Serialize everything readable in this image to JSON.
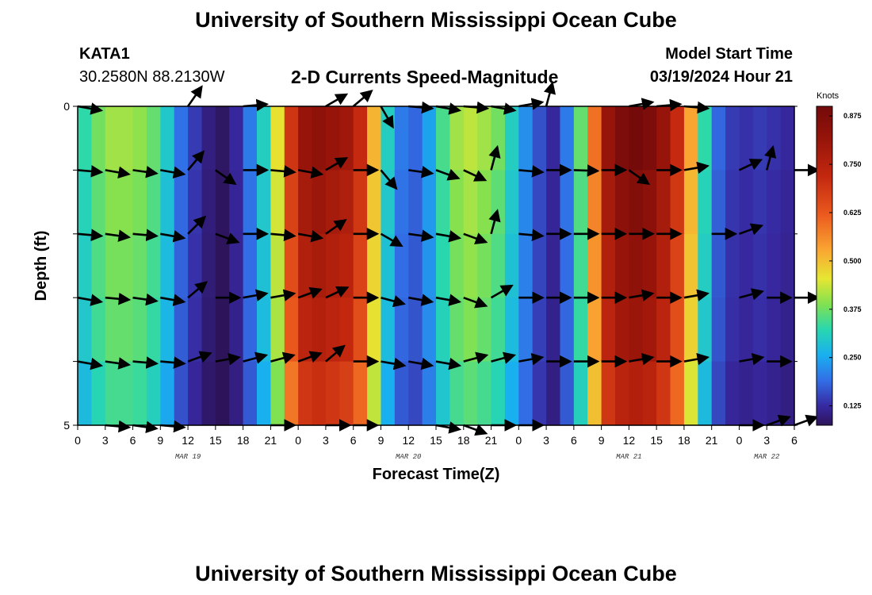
{
  "header": {
    "title": "University of Southern Mississippi Ocean Cube",
    "station_id": "KATA1",
    "coordinates": "30.2580N  88.2130W",
    "plot_title": "2-D Currents Speed-Magnitude",
    "model_start_label": "Model Start Time",
    "model_start_value": "03/19/2024 Hour 21"
  },
  "footer": {
    "title": "University of Southern Mississippi Ocean Cube"
  },
  "chart_data": {
    "type": "heatmap",
    "title": "2-D Currents Speed-Magnitude",
    "xlabel": "Forecast Time(Z)",
    "ylabel": "Depth (ft)",
    "x_tick_labels": [
      "0",
      "3",
      "6",
      "9",
      "12",
      "15",
      "18",
      "21",
      "0",
      "3",
      "6",
      "9",
      "12",
      "15",
      "18",
      "21",
      "0",
      "3",
      "6",
      "9",
      "12",
      "15",
      "18",
      "21",
      "0",
      "3",
      "6"
    ],
    "x_range_hours": [
      0,
      78
    ],
    "date_labels": [
      {
        "label": "MAR 19",
        "hour": 12
      },
      {
        "label": "MAR 20",
        "hour": 36
      },
      {
        "label": "MAR 21",
        "hour": 60
      },
      {
        "label": "MAR 22",
        "hour": 75
      }
    ],
    "y_tick_labels": [
      "0",
      "5"
    ],
    "y_range_ft": [
      0,
      5
    ],
    "depth_rows": 5,
    "colorbar": {
      "unit": "Knots",
      "range": [
        0.075,
        0.9
      ],
      "ticks": [
        "0.125",
        "0.250",
        "0.375",
        "0.500",
        "0.625",
        "0.750",
        "0.875"
      ],
      "tick_values": [
        0.125,
        0.25,
        0.375,
        0.5,
        0.625,
        0.75,
        0.875
      ]
    },
    "hours": [
      0,
      1.5,
      3,
      4.5,
      6,
      7.5,
      9,
      10.5,
      12,
      13.5,
      15,
      16.5,
      18,
      19.5,
      21,
      22.5,
      24,
      25.5,
      27,
      28.5,
      30,
      31.5,
      33,
      34.5,
      36,
      37.5,
      39,
      40.5,
      42,
      43.5,
      45,
      46.5,
      48,
      49.5,
      51,
      52.5,
      54,
      55.5,
      57,
      58.5,
      60,
      61.5,
      63,
      64.5,
      66,
      67.5,
      69,
      70.5,
      72,
      73.5,
      75,
      76.5
    ],
    "speed_profile_knots": [
      0.32,
      0.37,
      0.4,
      0.4,
      0.39,
      0.36,
      0.29,
      0.19,
      0.14,
      0.1,
      0.08,
      0.12,
      0.2,
      0.3,
      0.45,
      0.68,
      0.8,
      0.82,
      0.8,
      0.78,
      0.7,
      0.5,
      0.3,
      0.2,
      0.18,
      0.24,
      0.34,
      0.4,
      0.42,
      0.4,
      0.37,
      0.3,
      0.22,
      0.16,
      0.12,
      0.2,
      0.36,
      0.58,
      0.8,
      0.86,
      0.88,
      0.86,
      0.8,
      0.7,
      0.52,
      0.32,
      0.18,
      0.14,
      0.13,
      0.14,
      0.13,
      0.12
    ],
    "depth_factors": [
      1.02,
      0.98,
      0.95,
      0.92,
      0.86,
      0.7
    ],
    "vector_hours": [
      0,
      3,
      6,
      9,
      12,
      15,
      18,
      21,
      24,
      27,
      30,
      33,
      36,
      39,
      42,
      45,
      48,
      51,
      54,
      57,
      60,
      63,
      66,
      69,
      72,
      75,
      78
    ],
    "vector_depth_levels": [
      0,
      1,
      2,
      3,
      4,
      5
    ],
    "vector_directions_deg": [
      [
        10,
        5,
        5,
        5,
        -55,
        20,
        -5,
        -10,
        -15,
        -30,
        -40,
        60,
        5,
        10,
        5,
        10,
        -10,
        -75,
        5,
        -15,
        -10,
        -5,
        5,
        0,
        0,
        0,
        0
      ],
      [
        5,
        10,
        8,
        10,
        -50,
        35,
        0,
        5,
        10,
        -30,
        0,
        50,
        8,
        20,
        25,
        -75,
        5,
        0,
        2,
        0,
        35,
        0,
        -10,
        0,
        -25,
        -75,
        0
      ],
      [
        5,
        8,
        5,
        10,
        -45,
        20,
        0,
        5,
        10,
        -35,
        0,
        30,
        8,
        10,
        20,
        -75,
        5,
        0,
        0,
        0,
        0,
        0,
        -75,
        0,
        -20,
        0,
        0
      ],
      [
        10,
        5,
        8,
        10,
        -40,
        0,
        -10,
        -10,
        -20,
        -25,
        0,
        15,
        10,
        10,
        20,
        -30,
        0,
        0,
        0,
        0,
        -10,
        0,
        -10,
        0,
        -15,
        0,
        0
      ],
      [
        10,
        8,
        5,
        5,
        -20,
        -10,
        -15,
        -15,
        -20,
        -40,
        0,
        10,
        10,
        10,
        -15,
        -15,
        -10,
        0,
        0,
        0,
        -10,
        0,
        -10,
        0,
        -10,
        0,
        0
      ],
      [
        10,
        5,
        8,
        5,
        0,
        0,
        0,
        0,
        0,
        0,
        0,
        0,
        0,
        10,
        20,
        0,
        0,
        0,
        0,
        0,
        0,
        0,
        0,
        0,
        0,
        -20,
        -20
      ]
    ],
    "vector_hidden": [
      [
        1,
        2,
        3,
        5,
        7,
        8,
        18,
        19,
        23,
        24,
        25,
        26
      ],
      [
        23
      ],
      [
        22,
        25,
        26
      ],
      [
        23
      ],
      [
        23,
        26
      ],
      [
        0,
        4,
        5,
        6,
        8,
        11,
        12,
        17,
        18,
        19,
        20,
        21,
        22,
        23
      ]
    ]
  }
}
